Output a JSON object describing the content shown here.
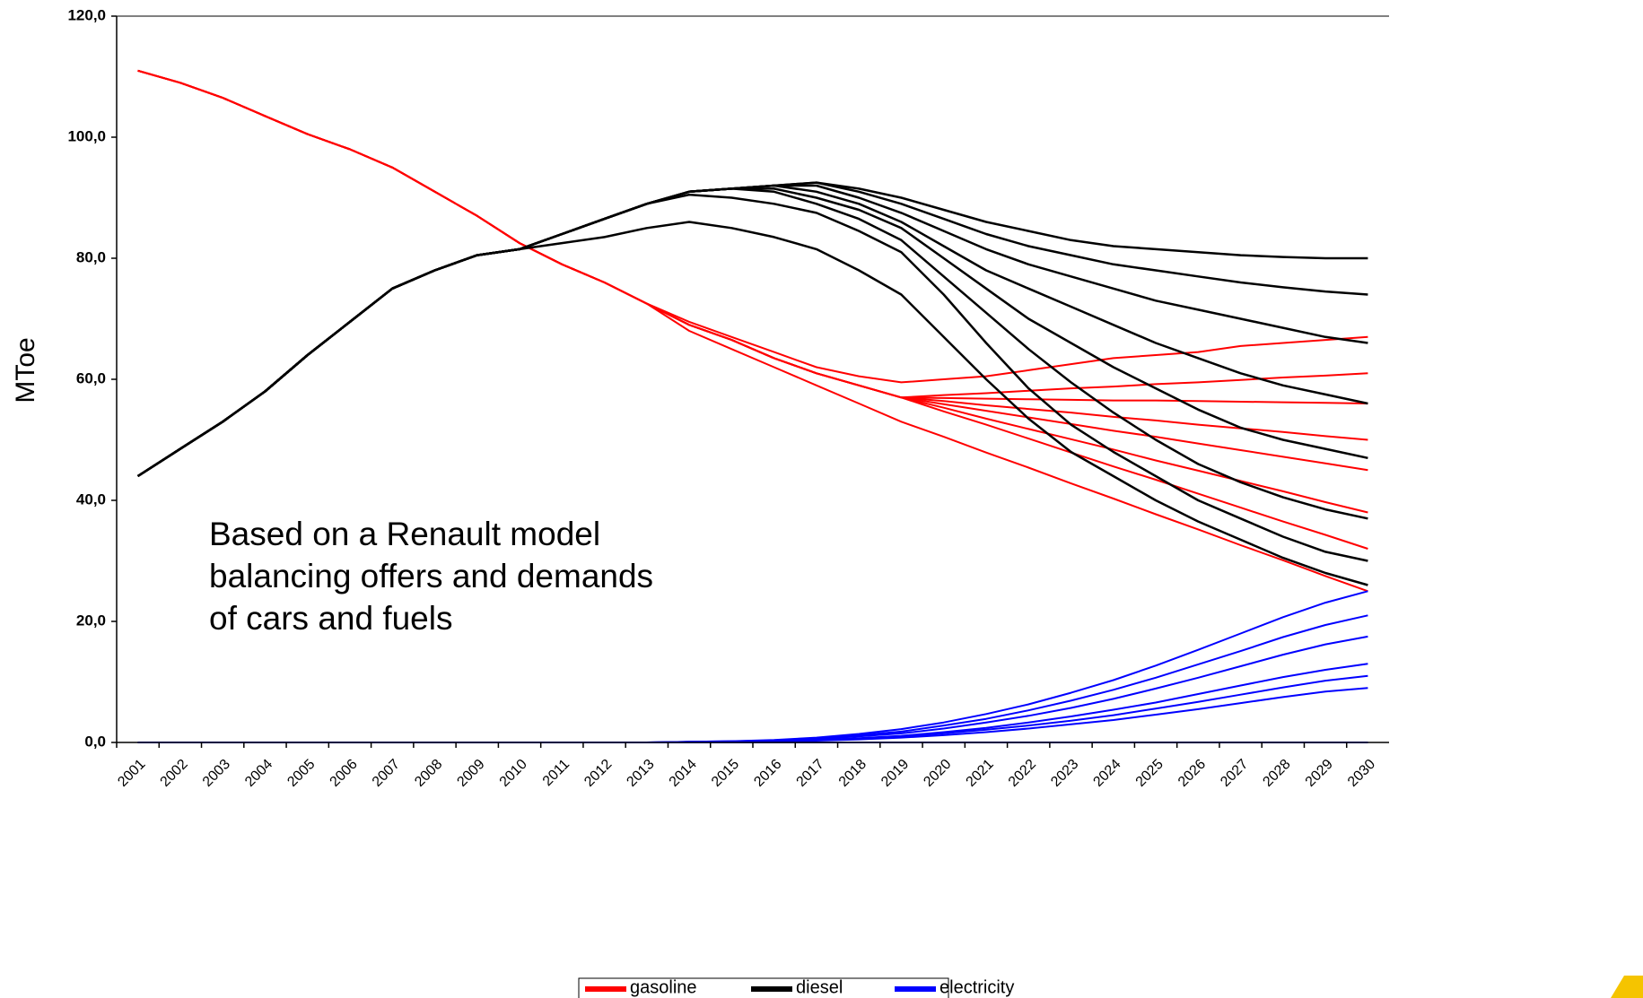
{
  "chart_data": {
    "type": "line",
    "y_label": "MToe",
    "annotation": "Based on a Renault model\nbalancing offers and demands\nof cars and fuels",
    "categories": [
      "2001",
      "2002",
      "2003",
      "2004",
      "2005",
      "2006",
      "2007",
      "2008",
      "2009",
      "2010",
      "2011",
      "2012",
      "2013",
      "2014",
      "2015",
      "2016",
      "2017",
      "2018",
      "2019",
      "2020",
      "2021",
      "2022",
      "2023",
      "2024",
      "2025",
      "2026",
      "2027",
      "2028",
      "2029",
      "2030"
    ],
    "ylim": [
      0,
      120
    ],
    "yticks": [
      {
        "value": 0,
        "label": "0,0"
      },
      {
        "value": 20,
        "label": "20,0"
      },
      {
        "value": 40,
        "label": "40,0"
      },
      {
        "value": 60,
        "label": "60,0"
      },
      {
        "value": 80,
        "label": "80,0"
      },
      {
        "value": 100,
        "label": "100,0"
      },
      {
        "value": 120,
        "label": "120,0"
      }
    ],
    "series": [
      {
        "name": "gasoline",
        "color": "#ff0000",
        "scenarios": [
          {
            "values": [
              111,
              109,
              106.5,
              103.5,
              100.5,
              98,
              95,
              91,
              87,
              82.5,
              79,
              76,
              72.5,
              69.5,
              67,
              64.5,
              62,
              60.5,
              59.5,
              60,
              60.5,
              61.5,
              62.5,
              63.5,
              64,
              64.5,
              65.5,
              66,
              66.5,
              67
            ]
          },
          {
            "values": [
              111,
              109,
              106.5,
              103.5,
              100.5,
              98,
              95,
              91,
              87,
              82.5,
              79,
              76,
              72.5,
              69,
              66.5,
              63.5,
              61,
              59,
              57,
              57.4,
              57.7,
              58.1,
              58.5,
              58.8,
              59.2,
              59.5,
              59.9,
              60.3,
              60.6,
              61
            ]
          },
          {
            "values": [
              111,
              109,
              106.5,
              103.5,
              100.5,
              98,
              95,
              91,
              87,
              82.5,
              79,
              76,
              72.5,
              69,
              66.5,
              63.5,
              61,
              59,
              57,
              56.9,
              56.8,
              56.7,
              56.6,
              56.5,
              56.5,
              56.4,
              56.3,
              56.2,
              56.1,
              56
            ]
          },
          {
            "values": [
              111,
              109,
              106.5,
              103.5,
              100.5,
              98,
              95,
              91,
              87,
              82.5,
              79,
              76,
              72.5,
              69,
              66.5,
              63.5,
              61,
              59,
              57,
              56.4,
              55.7,
              55.1,
              54.5,
              53.8,
              53.2,
              52.5,
              51.9,
              51.3,
              50.6,
              50
            ]
          },
          {
            "values": [
              111,
              109,
              106.5,
              103.5,
              100.5,
              98,
              95,
              91,
              87,
              82.5,
              79,
              76,
              72.5,
              69,
              66.5,
              63.5,
              61,
              59,
              57,
              55.9,
              54.8,
              53.7,
              52.6,
              51.5,
              50.5,
              49.4,
              48.3,
              47.2,
              46.1,
              45
            ]
          },
          {
            "values": [
              111,
              109,
              106.5,
              103.5,
              100.5,
              98,
              95,
              91,
              87,
              82.5,
              79,
              76,
              72.5,
              69,
              66.5,
              63.5,
              61,
              59,
              57,
              55.3,
              53.5,
              51.8,
              50.1,
              48.4,
              46.6,
              44.9,
              43.2,
              41.5,
              39.7,
              38
            ]
          },
          {
            "values": [
              111,
              109,
              106.5,
              103.5,
              100.5,
              98,
              95,
              91,
              87,
              82.5,
              79,
              76,
              72.5,
              69,
              66.5,
              63.5,
              61,
              59,
              57,
              54.7,
              52.5,
              50.2,
              47.9,
              45.6,
              43.4,
              41.1,
              38.8,
              36.5,
              34.3,
              32
            ]
          },
          {
            "values": [
              111,
              109,
              106.5,
              103.5,
              100.5,
              98,
              95,
              91,
              87,
              82.5,
              79,
              76,
              72.5,
              68,
              65,
              62,
              59,
              56,
              53,
              50.5,
              47.9,
              45.4,
              42.8,
              40.3,
              37.7,
              35.2,
              32.6,
              30.1,
              27.5,
              25
            ]
          }
        ]
      },
      {
        "name": "diesel",
        "color": "#000000",
        "scenarios": [
          {
            "values": [
              44,
              48.5,
              53,
              58,
              64,
              69.5,
              75,
              78,
              80.5,
              81.5,
              84,
              86.5,
              89,
              91,
              91.5,
              92,
              92.5,
              91.5,
              90,
              88,
              86,
              84.5,
              83,
              82,
              81.5,
              81,
              80.5,
              80.2,
              80,
              80
            ]
          },
          {
            "values": [
              44,
              48.5,
              53,
              58,
              64,
              69.5,
              75,
              78,
              80.5,
              81.5,
              84,
              86.5,
              89,
              91,
              91.5,
              92,
              92.5,
              91,
              89,
              86.5,
              84,
              82,
              80.5,
              79,
              78,
              77,
              76,
              75.2,
              74.5,
              74
            ]
          },
          {
            "values": [
              44,
              48.5,
              53,
              58,
              64,
              69.5,
              75,
              78,
              80.5,
              81.5,
              84,
              86.5,
              89,
              91,
              91.5,
              92,
              92,
              90,
              87.5,
              84.5,
              81.5,
              79,
              77,
              75,
              73,
              71.5,
              70,
              68.5,
              67,
              66
            ]
          },
          {
            "values": [
              44,
              48.5,
              53,
              58,
              64,
              69.5,
              75,
              78,
              80.5,
              81.5,
              84,
              86.5,
              89,
              91,
              91.5,
              92,
              91,
              89,
              86,
              82,
              78,
              75,
              72,
              69,
              66,
              63.5,
              61,
              59,
              57.5,
              56
            ]
          },
          {
            "values": [
              44,
              48.5,
              53,
              58,
              64,
              69.5,
              75,
              78,
              80.5,
              81.5,
              84,
              86.5,
              89,
              91,
              91.5,
              91.5,
              90,
              88,
              85,
              80,
              75,
              70,
              66,
              62,
              58.5,
              55,
              52,
              50,
              48.5,
              47
            ]
          },
          {
            "values": [
              44,
              48.5,
              53,
              58,
              64,
              69.5,
              75,
              78,
              80.5,
              81.5,
              84,
              86.5,
              89,
              91,
              91.5,
              91,
              89,
              86.5,
              83,
              77,
              71,
              65,
              59.5,
              54.5,
              50,
              46,
              43,
              40.5,
              38.5,
              37
            ]
          },
          {
            "values": [
              44,
              48.5,
              53,
              58,
              64,
              69.5,
              75,
              78,
              80.5,
              81.5,
              84,
              86.5,
              89,
              90.5,
              90,
              89,
              87.5,
              84.5,
              81,
              74,
              66,
              58.5,
              52.5,
              48,
              44,
              40,
              37,
              34,
              31.5,
              30
            ]
          },
          {
            "values": [
              44,
              48.5,
              53,
              58,
              64,
              69.5,
              75,
              78,
              80.5,
              81.5,
              82.5,
              83.5,
              85,
              86,
              85,
              83.5,
              81.5,
              78,
              74,
              67,
              60,
              53.5,
              48,
              44,
              40,
              36.5,
              33.5,
              30.5,
              28,
              26
            ]
          }
        ]
      },
      {
        "name": "electricity",
        "color": "#0000ff",
        "scenarios": [
          {
            "values": [
              0,
              0,
              0,
              0,
              0,
              0,
              0,
              0,
              0,
              0,
              0,
              0,
              0,
              0.1,
              0.2,
              0.4,
              0.8,
              1.4,
              2.2,
              3.3,
              4.7,
              6.3,
              8.2,
              10.3,
              12.7,
              15.3,
              18,
              20.7,
              23.1,
              25
            ]
          },
          {
            "values": [
              0,
              0,
              0,
              0,
              0,
              0,
              0,
              0,
              0,
              0,
              0,
              0,
              0,
              0.1,
              0.2,
              0.3,
              0.7,
              1.2,
              1.8,
              2.8,
              3.9,
              5.3,
              6.9,
              8.7,
              10.7,
              12.9,
              15.1,
              17.4,
              19.4,
              21
            ]
          },
          {
            "values": [
              0,
              0,
              0,
              0,
              0,
              0,
              0,
              0,
              0,
              0,
              0,
              0,
              0,
              0.1,
              0.1,
              0.3,
              0.6,
              1,
              1.5,
              2.3,
              3.3,
              4.4,
              5.7,
              7.2,
              8.9,
              10.7,
              12.6,
              14.5,
              16.2,
              17.5
            ]
          },
          {
            "values": [
              0,
              0,
              0,
              0,
              0,
              0,
              0,
              0,
              0,
              0,
              0,
              0,
              0,
              0,
              0.1,
              0.2,
              0.4,
              0.7,
              1.1,
              1.7,
              2.4,
              3.3,
              4.3,
              5.4,
              6.6,
              8,
              9.4,
              10.8,
              12,
              13
            ]
          },
          {
            "values": [
              0,
              0,
              0,
              0,
              0,
              0,
              0,
              0,
              0,
              0,
              0,
              0,
              0,
              0,
              0.1,
              0.2,
              0.4,
              0.6,
              1,
              1.5,
              2.1,
              2.8,
              3.6,
              4.5,
              5.6,
              6.7,
              7.9,
              9.1,
              10.2,
              11
            ]
          },
          {
            "values": [
              0,
              0,
              0,
              0,
              0,
              0,
              0,
              0,
              0,
              0,
              0,
              0,
              0,
              0,
              0.1,
              0.1,
              0.3,
              0.5,
              0.8,
              1.2,
              1.7,
              2.3,
              3,
              3.7,
              4.6,
              5.5,
              6.5,
              7.5,
              8.4,
              9
            ]
          },
          {
            "values": [
              0,
              0,
              0,
              0,
              0,
              0,
              0,
              0,
              0,
              0,
              0,
              0,
              0,
              0,
              0,
              0,
              0,
              0,
              0,
              0,
              0,
              0,
              0,
              0,
              0,
              0,
              0,
              0,
              0,
              0
            ]
          }
        ]
      }
    ]
  }
}
